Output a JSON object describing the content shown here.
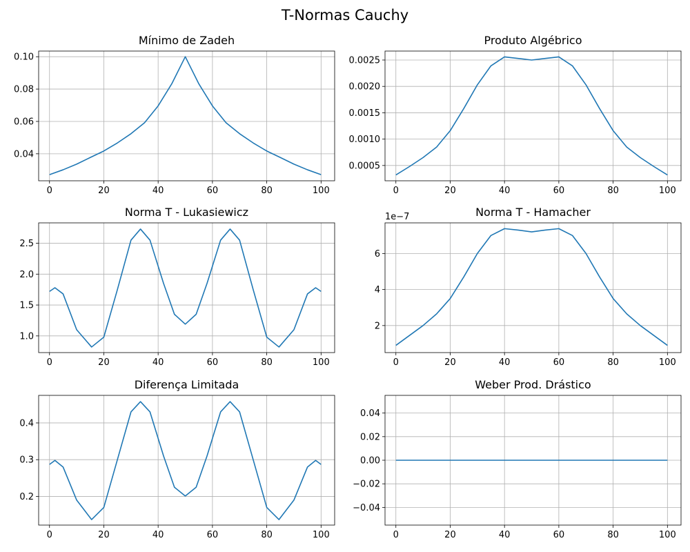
{
  "figure_title": "T-Normas Cauchy",
  "chart_data": [
    {
      "type": "line",
      "title": "Mínimo de Zadeh",
      "xlim": [
        -4,
        105
      ],
      "ylim": [
        0.0233,
        0.1035
      ],
      "xticks": [
        0,
        20,
        40,
        60,
        80,
        100
      ],
      "xtick_labels": [
        "0",
        "20",
        "40",
        "60",
        "80",
        "100"
      ],
      "yticks": [
        0.04,
        0.06,
        0.08,
        0.1
      ],
      "ytick_labels": [
        "0.04",
        "0.06",
        "0.08",
        "0.10"
      ],
      "offset_label": "",
      "grid": true,
      "x": [
        0,
        5,
        10,
        15,
        20,
        25,
        30,
        35,
        40,
        45,
        50,
        55,
        60,
        65,
        70,
        75,
        80,
        85,
        90,
        95,
        100
      ],
      "y": [
        0.0271,
        0.0301,
        0.0336,
        0.0377,
        0.0417,
        0.0467,
        0.0524,
        0.0592,
        0.0696,
        0.0832,
        0.1,
        0.0832,
        0.0696,
        0.0592,
        0.0524,
        0.0467,
        0.0417,
        0.0377,
        0.0336,
        0.0301,
        0.0271
      ]
    },
    {
      "type": "line",
      "title": "Produto Algébrico",
      "xlim": [
        -4,
        105
      ],
      "ylim": [
        0.00021,
        0.00267
      ],
      "xticks": [
        0,
        20,
        40,
        60,
        80,
        100
      ],
      "xtick_labels": [
        "0",
        "20",
        "40",
        "60",
        "80",
        "100"
      ],
      "yticks": [
        0.0005,
        0.001,
        0.0015,
        0.002,
        0.0025
      ],
      "ytick_labels": [
        "0.0005",
        "0.0010",
        "0.0015",
        "0.0020",
        "0.0025"
      ],
      "offset_label": "",
      "grid": true,
      "x": [
        0,
        5,
        10,
        15,
        20,
        25,
        30,
        35,
        40,
        45,
        50,
        55,
        60,
        65,
        70,
        75,
        80,
        85,
        90,
        95,
        100
      ],
      "y": [
        0.00032,
        0.00048,
        0.00065,
        0.00085,
        0.00116,
        0.00158,
        0.00203,
        0.00239,
        0.00256,
        0.00253,
        0.0025,
        0.00253,
        0.00256,
        0.00239,
        0.00203,
        0.00158,
        0.00116,
        0.00085,
        0.00065,
        0.00048,
        0.00032
      ]
    },
    {
      "type": "line",
      "title": "Norma T - Lukasiewicz",
      "xlim": [
        -4,
        105
      ],
      "ylim": [
        0.73,
        2.83
      ],
      "xticks": [
        0,
        20,
        40,
        60,
        80,
        100
      ],
      "xtick_labels": [
        "0",
        "20",
        "40",
        "60",
        "80",
        "100"
      ],
      "yticks": [
        1.0,
        1.5,
        2.0,
        2.5
      ],
      "ytick_labels": [
        "1.0",
        "1.5",
        "2.0",
        "2.5"
      ],
      "offset_label": "",
      "grid": true,
      "x": [
        0,
        2,
        5,
        10,
        15.5,
        20,
        25,
        30,
        33.5,
        37,
        42,
        46,
        50,
        54,
        58,
        63,
        66.5,
        70,
        75,
        80,
        84.5,
        90,
        95,
        98,
        100
      ],
      "y": [
        1.72,
        1.78,
        1.68,
        1.1,
        0.82,
        0.98,
        1.75,
        2.55,
        2.73,
        2.55,
        1.85,
        1.35,
        1.19,
        1.35,
        1.85,
        2.55,
        2.73,
        2.55,
        1.75,
        0.98,
        0.82,
        1.1,
        1.68,
        1.78,
        1.72
      ]
    },
    {
      "type": "line",
      "title": "Norma T - Hamacher",
      "xlim": [
        -4,
        105
      ],
      "ylim": [
        5e-08,
        7.7e-07
      ],
      "xticks": [
        0,
        20,
        40,
        60,
        80,
        100
      ],
      "xtick_labels": [
        "0",
        "20",
        "40",
        "60",
        "80",
        "100"
      ],
      "yticks": [
        2e-07,
        4e-07,
        6e-07
      ],
      "ytick_labels": [
        "2",
        "4",
        "6"
      ],
      "offset_label": "1e−7",
      "grid": true,
      "x": [
        0,
        5,
        10,
        15,
        20,
        25,
        30,
        35,
        40,
        45,
        50,
        55,
        60,
        65,
        70,
        75,
        80,
        85,
        90,
        95,
        100
      ],
      "y": [
        9e-08,
        1.45e-07,
        2e-07,
        2.65e-07,
        3.5e-07,
        4.7e-07,
        6e-07,
        7e-07,
        7.38e-07,
        7.3e-07,
        7.2e-07,
        7.3e-07,
        7.38e-07,
        7e-07,
        6e-07,
        4.7e-07,
        3.5e-07,
        2.65e-07,
        2e-07,
        1.45e-07,
        9e-08
      ]
    },
    {
      "type": "line",
      "title": "Diferença Limitada",
      "xlim": [
        -4,
        105
      ],
      "ylim": [
        0.122,
        0.475
      ],
      "xticks": [
        0,
        20,
        40,
        60,
        80,
        100
      ],
      "xtick_labels": [
        "0",
        "20",
        "40",
        "60",
        "80",
        "100"
      ],
      "yticks": [
        0.2,
        0.3,
        0.4
      ],
      "ytick_labels": [
        "0.2",
        "0.3",
        "0.4"
      ],
      "offset_label": "",
      "grid": true,
      "x": [
        0,
        2,
        5,
        10,
        15.5,
        20,
        25,
        30,
        33.5,
        37,
        42,
        46,
        50,
        54,
        58,
        63,
        66.5,
        70,
        75,
        80,
        84.5,
        90,
        95,
        98,
        100
      ],
      "y": [
        0.287,
        0.298,
        0.28,
        0.19,
        0.137,
        0.17,
        0.3,
        0.43,
        0.458,
        0.43,
        0.31,
        0.225,
        0.201,
        0.225,
        0.31,
        0.43,
        0.458,
        0.43,
        0.3,
        0.17,
        0.137,
        0.19,
        0.28,
        0.298,
        0.287
      ]
    },
    {
      "type": "line",
      "title": "Weber Prod. Drástico",
      "xlim": [
        -4,
        105
      ],
      "ylim": [
        -0.055,
        0.055
      ],
      "xticks": [
        0,
        20,
        40,
        60,
        80,
        100
      ],
      "xtick_labels": [
        "0",
        "20",
        "40",
        "60",
        "80",
        "100"
      ],
      "yticks": [
        -0.04,
        -0.02,
        0.0,
        0.02,
        0.04
      ],
      "ytick_labels": [
        "−0.04",
        "−0.02",
        "0.00",
        "0.02",
        "0.04"
      ],
      "offset_label": "",
      "grid": true,
      "x": [
        0,
        100
      ],
      "y": [
        0,
        0
      ]
    }
  ]
}
